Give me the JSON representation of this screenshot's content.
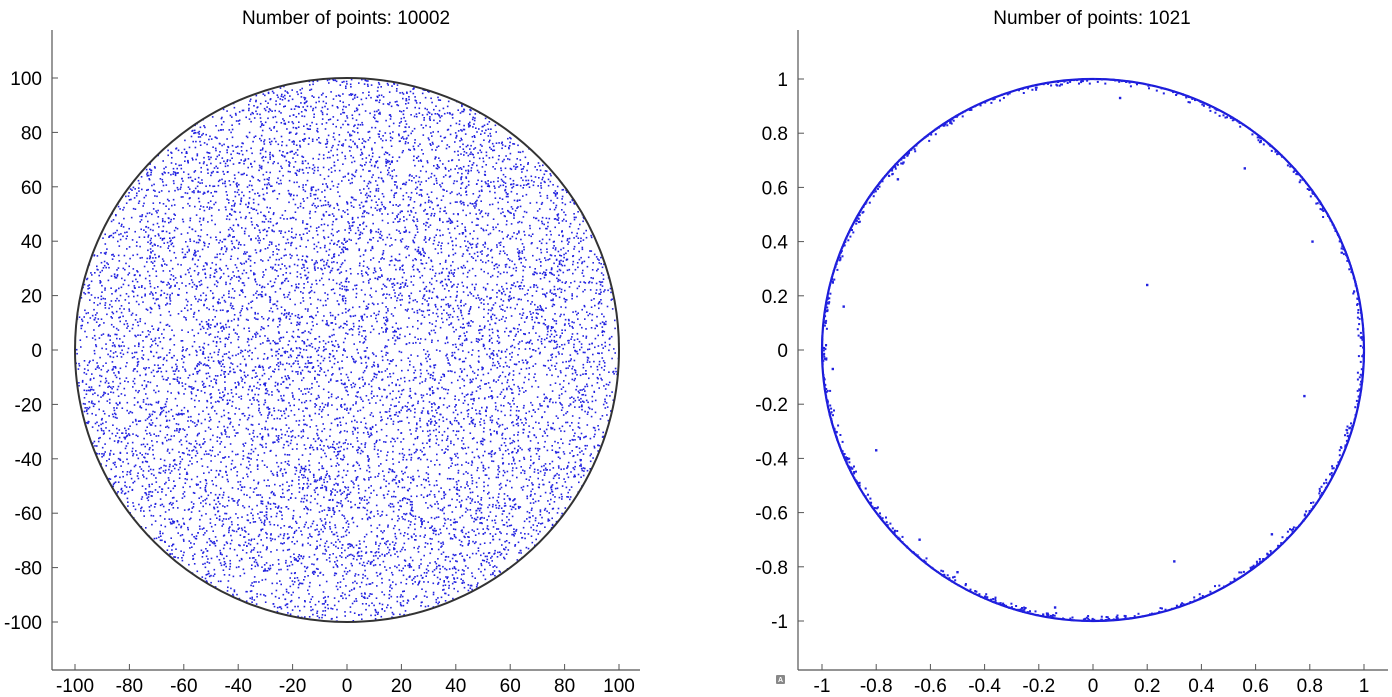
{
  "chart_data": [
    {
      "type": "scatter",
      "title": "Number of points: 10002",
      "xlabel": "",
      "ylabel": "",
      "xlim": [
        -110,
        110
      ],
      "ylim": [
        -118,
        118
      ],
      "x_ticks": [
        -100,
        -80,
        -60,
        -40,
        -20,
        0,
        20,
        40,
        60,
        80,
        100
      ],
      "y_ticks": [
        100,
        80,
        60,
        40,
        20,
        0,
        -20,
        -40,
        -60,
        -80,
        -100
      ],
      "x_tick_labels": [
        "-100",
        "-80",
        "-60",
        "-40",
        "-20",
        "0",
        "20",
        "40",
        "60",
        "80",
        "100"
      ],
      "y_tick_labels": [
        "100",
        "80",
        "60",
        "40",
        "20",
        "0",
        "-20",
        "-40",
        "-60",
        "-80",
        "-100"
      ],
      "boundary_circle": {
        "center": [
          0,
          0
        ],
        "radius": 100
      },
      "series": [
        {
          "n_points": 10002,
          "distribution": "uniform over the disk of radius 100 centered at origin",
          "color": "#2222e0"
        }
      ],
      "grid": false
    },
    {
      "type": "scatter",
      "title": "Number of points: 1021",
      "xlabel": "",
      "ylabel": "",
      "xlim": [
        -1.1,
        1.1
      ],
      "ylim": [
        -1.18,
        1.18
      ],
      "x_ticks": [
        -1,
        -0.8,
        -0.6,
        -0.4,
        -0.2,
        0,
        0.2,
        0.4,
        0.6,
        0.8,
        1
      ],
      "y_ticks": [
        1,
        0.8,
        0.6,
        0.4,
        0.2,
        0,
        -0.2,
        -0.4,
        -0.6,
        -0.8,
        -1
      ],
      "x_tick_labels": [
        "-1",
        "-0.8",
        "-0.6",
        "-0.4",
        "-0.2",
        "0",
        "0.2",
        "0.4",
        "0.6",
        "0.8",
        "1"
      ],
      "y_tick_labels": [
        "1",
        "0.8",
        "0.6",
        "0.4",
        "0.2",
        "0",
        "-0.2",
        "-0.4",
        "-0.6",
        "-0.8",
        "-1"
      ],
      "boundary_circle": {
        "center": [
          0,
          0
        ],
        "radius": 1
      },
      "series": [
        {
          "n_points": 1021,
          "distribution": "concentrated on the unit circle, with a few interior points",
          "color": "#2222e0",
          "interior_points": [
            [
              0.2,
              0.24
            ],
            [
              -0.92,
              0.16
            ],
            [
              -0.8,
              -0.37
            ],
            [
              0.3,
              -0.78
            ],
            [
              0.56,
              0.67
            ],
            [
              0.78,
              -0.17
            ],
            [
              -0.96,
              -0.07
            ],
            [
              -0.72,
              0.63
            ],
            [
              0.1,
              0.93
            ],
            [
              0.81,
              0.4
            ],
            [
              -0.14,
              -0.95
            ],
            [
              -0.64,
              -0.7
            ],
            [
              0.66,
              -0.68
            ],
            [
              -0.5,
              -0.82
            ]
          ]
        }
      ],
      "grid": false
    }
  ]
}
